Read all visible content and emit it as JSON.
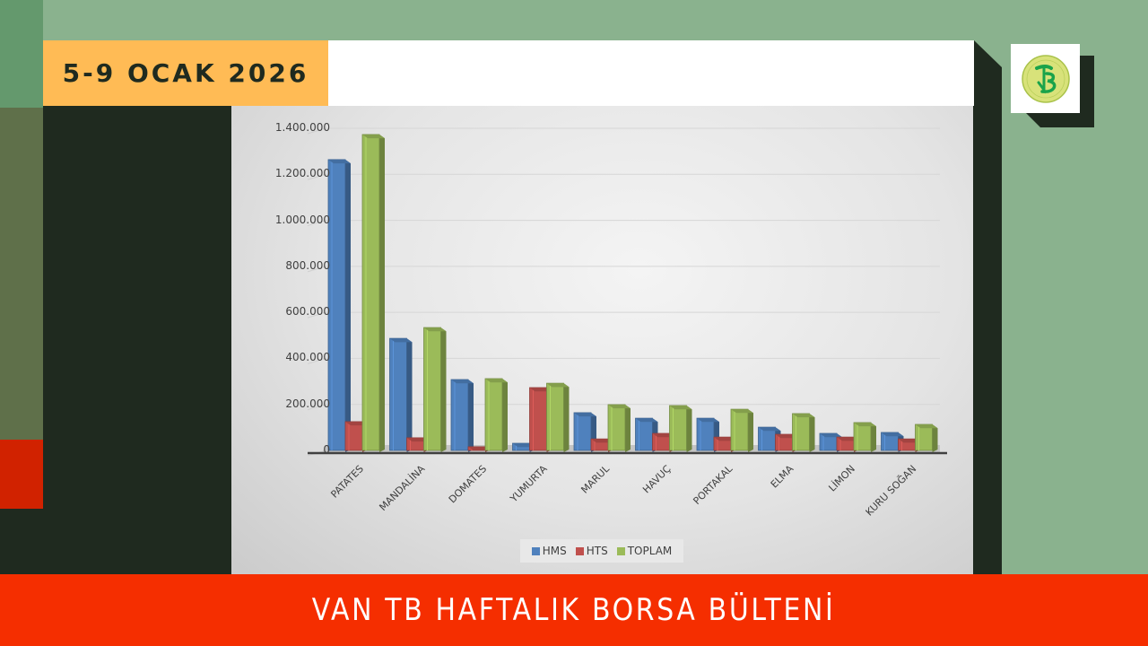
{
  "slide": {
    "date_label": "5-9 OCAK 2026",
    "footer_title": "VAN TB HAFTALIK BORSA BÜLTENİ",
    "logo": "van-ticaret-borsasi-logo"
  },
  "colors": {
    "background_green": "#8ab28e",
    "dark_panel": "#1f2a1f",
    "date_box": "#ffbb55",
    "footer_red": "#f52e00",
    "accent_red": "#d12200",
    "hms": "#4f81bd",
    "hts": "#c0504d",
    "toplam": "#9bbb59"
  },
  "chart_data": {
    "type": "bar",
    "style": "3d-clustered-column",
    "title": "",
    "xlabel": "",
    "ylabel": "",
    "ylim": [
      0,
      1400000
    ],
    "yticks": [
      0,
      200000,
      400000,
      600000,
      800000,
      1000000,
      1200000,
      1400000
    ],
    "ytick_labels": [
      "0",
      "200.000",
      "400.000",
      "600.000",
      "800.000",
      "1.000.000",
      "1.200.000",
      "1.400.000"
    ],
    "grid": true,
    "legend_position": "bottom",
    "categories": [
      "PATATES",
      "MANDALİNA",
      "DOMATES",
      "YUMURTA",
      "MARUL",
      "HAVUÇ",
      "PORTAKAL",
      "ELMA",
      "LİMON",
      "KURU SOĞAN"
    ],
    "series": [
      {
        "name": "HMS",
        "color": "#4f81bd",
        "values": [
          1264000,
          487000,
          308000,
          31000,
          164000,
          140000,
          140000,
          101000,
          74000,
          78000
        ]
      },
      {
        "name": "HTS",
        "color": "#c0504d",
        "values": [
          125000,
          55000,
          16000,
          273000,
          50000,
          74000,
          58000,
          70000,
          58000,
          50000
        ]
      },
      {
        "name": "TOPLAM",
        "color": "#9bbb59",
        "values": [
          1373000,
          534000,
          312000,
          292000,
          199000,
          195000,
          179000,
          160000,
          121000,
          113000
        ]
      }
    ]
  }
}
